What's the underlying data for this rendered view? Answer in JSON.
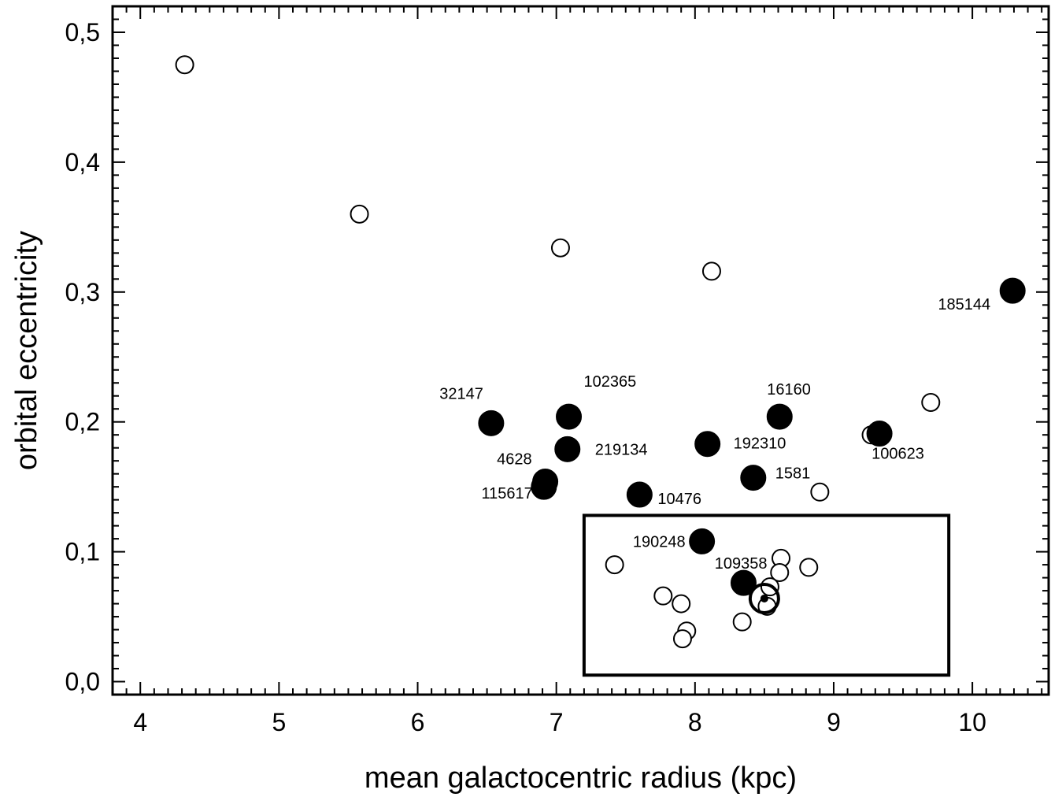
{
  "chart_data": {
    "type": "scatter",
    "title": "",
    "xlabel": "mean galactocentric radius (kpc)",
    "ylabel": "orbital eccentricity",
    "xlim": [
      3.8,
      10.55
    ],
    "ylim": [
      -0.01,
      0.52
    ],
    "xticks": [
      4,
      5,
      6,
      7,
      8,
      9,
      10
    ],
    "xtick_labels": [
      "4",
      "5",
      "6",
      "7",
      "8",
      "9",
      "10"
    ],
    "yticks": [
      0.0,
      0.1,
      0.2,
      0.3,
      0.4,
      0.5
    ],
    "ytick_labels": [
      "0,0",
      "0,1",
      "0,2",
      "0,3",
      "0,4",
      "0,5"
    ],
    "grid": false,
    "series": [
      {
        "marker": "open-circle",
        "points": [
          {
            "x": 4.32,
            "y": 0.475
          },
          {
            "x": 5.58,
            "y": 0.36
          },
          {
            "x": 7.03,
            "y": 0.334
          },
          {
            "x": 8.12,
            "y": 0.316
          },
          {
            "x": 9.7,
            "y": 0.215
          },
          {
            "x": 9.27,
            "y": 0.19
          },
          {
            "x": 8.9,
            "y": 0.146
          },
          {
            "x": 7.42,
            "y": 0.09
          },
          {
            "x": 8.62,
            "y": 0.095
          },
          {
            "x": 8.61,
            "y": 0.084
          },
          {
            "x": 8.82,
            "y": 0.088
          },
          {
            "x": 8.54,
            "y": 0.073
          },
          {
            "x": 7.77,
            "y": 0.066
          },
          {
            "x": 7.9,
            "y": 0.06
          },
          {
            "x": 8.52,
            "y": 0.058
          },
          {
            "x": 8.34,
            "y": 0.046
          },
          {
            "x": 7.94,
            "y": 0.039
          },
          {
            "x": 7.91,
            "y": 0.033
          }
        ]
      },
      {
        "marker": "filled-circle",
        "points": [
          {
            "x": 10.29,
            "y": 0.301,
            "label": "185144"
          },
          {
            "x": 6.53,
            "y": 0.199,
            "label": "32147"
          },
          {
            "x": 7.09,
            "y": 0.204,
            "label": "102365"
          },
          {
            "x": 8.61,
            "y": 0.204,
            "label": "16160"
          },
          {
            "x": 7.08,
            "y": 0.179,
            "label": "219134"
          },
          {
            "x": 8.09,
            "y": 0.183,
            "label": "192310"
          },
          {
            "x": 9.33,
            "y": 0.191,
            "label": "100623"
          },
          {
            "x": 6.92,
            "y": 0.154,
            "label": "4628"
          },
          {
            "x": 6.91,
            "y": 0.15,
            "label": "115617"
          },
          {
            "x": 7.6,
            "y": 0.144,
            "label": "10476"
          },
          {
            "x": 8.42,
            "y": 0.157,
            "label": "1581"
          },
          {
            "x": 8.05,
            "y": 0.108,
            "label": "190248"
          },
          {
            "x": 8.35,
            "y": 0.076,
            "label": "109358"
          }
        ]
      },
      {
        "marker": "sun-symbol",
        "points": [
          {
            "x": 8.5,
            "y": 0.064
          }
        ]
      }
    ],
    "highlight_box": {
      "x0": 7.2,
      "x1": 9.83,
      "y0": 0.005,
      "y1": 0.128
    }
  }
}
